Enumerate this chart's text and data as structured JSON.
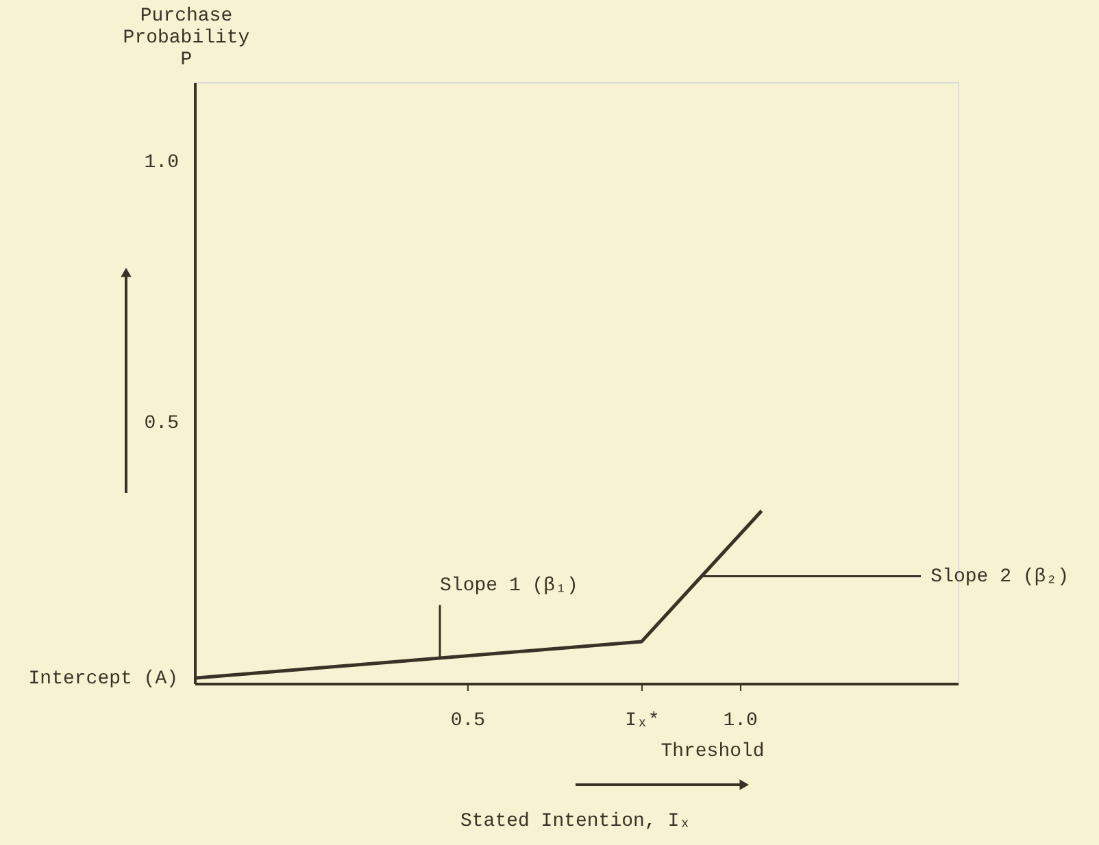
{
  "chart_data": {
    "type": "line",
    "xlabel": "Stated Intention, Iₓ",
    "ylabel": "Purchase Probability P",
    "x": [
      0,
      0.82,
      1.04
    ],
    "values": [
      0.01,
      0.08,
      0.33
    ],
    "color": "#3a3226",
    "xlim": [
      0,
      1.4
    ],
    "ylim": [
      0,
      1.15
    ],
    "xticks": [
      0.5,
      {
        "value": 0.82,
        "label": "Iₓ*"
      },
      {
        "value": 1,
        "label": "1.0"
      }
    ],
    "yticks": [
      0.5,
      {
        "value": 1,
        "label": "1.0"
      }
    ],
    "grid": false,
    "marker": "none",
    "line_style": "solid",
    "annotations": [
      {
        "text": "Intercept (A)",
        "x": 0,
        "y": 0.01
      },
      {
        "text": "Slope 1 (β₁)",
        "x": 0.45,
        "y": 0.05
      },
      {
        "text": "Slope 2 (β₂)",
        "x": 0.93,
        "y": 0.205
      },
      "Threshold"
    ]
  }
}
